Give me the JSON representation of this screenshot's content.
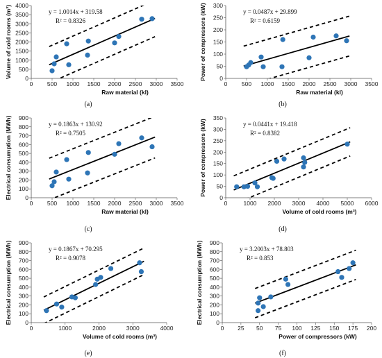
{
  "chart_data": [
    {
      "id": "a",
      "type": "scatter",
      "label": "(a)",
      "xlabel": "Raw material (kl)",
      "ylabel": "Volume of cold rooms (m³)",
      "xlim": [
        0,
        3500
      ],
      "ylim": [
        0,
        4000
      ],
      "xticks": [
        "0",
        "500",
        "1000",
        "1500",
        "2000",
        "2500",
        "3000",
        "3500"
      ],
      "yticks": [
        "0",
        "500",
        "1000",
        "1500",
        "2000",
        "2500",
        "3000",
        "3500",
        "4000"
      ],
      "equation": "y = 1.0014x + 319.58",
      "r2": "R² = 0.8326",
      "slope": 1.0014,
      "intercept": 319.58,
      "band": 1000,
      "points": [
        [
          500,
          420
        ],
        [
          550,
          800
        ],
        [
          600,
          1180
        ],
        [
          850,
          1900
        ],
        [
          900,
          750
        ],
        [
          1350,
          1280
        ],
        [
          1370,
          2050
        ],
        [
          2000,
          1950
        ],
        [
          2100,
          2300
        ],
        [
          2650,
          3250
        ],
        [
          2900,
          3280
        ]
      ],
      "color_points": "#2e75b6"
    },
    {
      "id": "b",
      "type": "scatter",
      "label": "(b)",
      "xlabel": "Raw material (kl)",
      "ylabel": "Power of compressors (kW)",
      "xlim": [
        0,
        3500
      ],
      "ylim": [
        0,
        300
      ],
      "xticks": [
        "0",
        "500",
        "1000",
        "1500",
        "2000",
        "2500",
        "3000",
        "3500"
      ],
      "yticks": [
        "0",
        "50",
        "100",
        "150",
        "200",
        "250",
        "300"
      ],
      "equation": "y = 0.0487x + 29.899",
      "r2": "R² = 0.6159",
      "slope": 0.0487,
      "intercept": 29.899,
      "band": 82,
      "points": [
        [
          500,
          48
        ],
        [
          550,
          55
        ],
        [
          600,
          65
        ],
        [
          850,
          88
        ],
        [
          900,
          48
        ],
        [
          1350,
          48
        ],
        [
          1370,
          160
        ],
        [
          2000,
          85
        ],
        [
          2100,
          170
        ],
        [
          2650,
          175
        ],
        [
          2900,
          155
        ]
      ],
      "color_points": "#2e75b6"
    },
    {
      "id": "c",
      "type": "scatter",
      "label": "(c)",
      "xlabel": "Raw material (kl)",
      "ylabel": "Electrical consumption (MWh)",
      "xlim": [
        0,
        3500
      ],
      "ylim": [
        0,
        900
      ],
      "xticks": [
        "0",
        "500",
        "1000",
        "1500",
        "2000",
        "2500",
        "3000",
        "3500"
      ],
      "yticks": [
        "0",
        "100",
        "200",
        "300",
        "400",
        "500",
        "600",
        "700",
        "800",
        "900"
      ],
      "equation": "y = 0.1863x + 130.92",
      "r2": "R² = 0.7505",
      "slope": 0.1863,
      "intercept": 130.92,
      "band": 235,
      "points": [
        [
          500,
          135
        ],
        [
          550,
          180
        ],
        [
          600,
          290
        ],
        [
          850,
          430
        ],
        [
          900,
          210
        ],
        [
          1350,
          280
        ],
        [
          1370,
          510
        ],
        [
          2000,
          490
        ],
        [
          2100,
          610
        ],
        [
          2650,
          675
        ],
        [
          2900,
          575
        ]
      ],
      "color_points": "#2e75b6"
    },
    {
      "id": "d",
      "type": "scatter",
      "label": "(d)",
      "xlabel": "Volume of cold rooms (m³)",
      "ylabel": "Power of compressors (kW)",
      "xlim": [
        0,
        6000
      ],
      "ylim": [
        0,
        350
      ],
      "xticks": [
        "0",
        "1000",
        "2000",
        "3000",
        "4000",
        "5000",
        "6000"
      ],
      "yticks": [
        "0",
        "50",
        "100",
        "150",
        "200",
        "250",
        "300",
        "350"
      ],
      "equation": "y = 0.0441x + 19.418",
      "r2": "R² = 0.8382",
      "slope": 0.0441,
      "intercept": 19.418,
      "band": 62,
      "points": [
        [
          450,
          48
        ],
        [
          750,
          48
        ],
        [
          900,
          50
        ],
        [
          1200,
          65
        ],
        [
          1300,
          48
        ],
        [
          1900,
          88
        ],
        [
          1950,
          85
        ],
        [
          2100,
          160
        ],
        [
          2400,
          170
        ],
        [
          3200,
          135
        ],
        [
          3200,
          175
        ],
        [
          3250,
          155
        ],
        [
          5000,
          235
        ]
      ],
      "color_points": "#2e75b6"
    },
    {
      "id": "e",
      "type": "scatter",
      "label": "(e)",
      "xlabel": "Volume of cold rooms (m³)",
      "ylabel": "Electrical consumption (MWh)",
      "xlim": [
        0,
        4000
      ],
      "ylim": [
        0,
        900
      ],
      "xticks": [
        "0",
        "1000",
        "2000",
        "3000",
        "4000"
      ],
      "yticks": [
        "0",
        "100",
        "200",
        "300",
        "400",
        "500",
        "600",
        "700",
        "800",
        "900"
      ],
      "equation": "y = 0.1867x + 70.295",
      "r2": "R² = 0.9078",
      "slope": 0.1867,
      "intercept": 70.295,
      "band": 150,
      "points": [
        [
          450,
          135
        ],
        [
          750,
          210
        ],
        [
          900,
          175
        ],
        [
          1200,
          290
        ],
        [
          1300,
          280
        ],
        [
          1900,
          430
        ],
        [
          1950,
          490
        ],
        [
          2050,
          510
        ],
        [
          2350,
          610
        ],
        [
          3200,
          675
        ],
        [
          3250,
          575
        ]
      ],
      "color_points": "#2e75b6"
    },
    {
      "id": "f",
      "type": "scatter",
      "label": "(f)",
      "xlabel": "Power of compressors (kW)",
      "ylabel": "Electrical consumption (MWh)",
      "xlim": [
        0,
        200
      ],
      "ylim": [
        0,
        900
      ],
      "xticks": [
        "0",
        "25",
        "50",
        "75",
        "100",
        "125",
        "150",
        "175",
        "200"
      ],
      "yticks": [
        "0",
        "100",
        "200",
        "300",
        "400",
        "500",
        "600",
        "700",
        "800",
        "900"
      ],
      "equation": "y = 3.2003x + 78.803",
      "r2": "R² = 0.853",
      "slope": 3.2003,
      "intercept": 78.803,
      "band": 165,
      "points": [
        [
          48,
          135
        ],
        [
          48,
          220
        ],
        [
          50,
          280
        ],
        [
          55,
          180
        ],
        [
          65,
          290
        ],
        [
          85,
          490
        ],
        [
          88,
          430
        ],
        [
          155,
          575
        ],
        [
          160,
          510
        ],
        [
          170,
          610
        ],
        [
          175,
          675
        ]
      ],
      "color_points": "#2e75b6"
    }
  ]
}
